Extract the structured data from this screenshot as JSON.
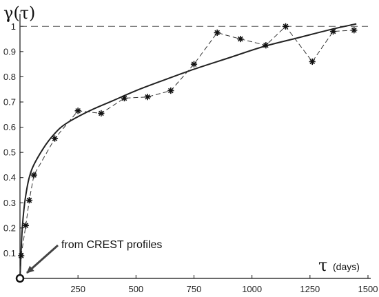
{
  "chart_data": {
    "type": "scatter",
    "title": "",
    "ylabel": "γ(τ)",
    "xlabel_symbol": "τ",
    "xlabel_unit": "(days)",
    "xlim": [
      0,
      1500
    ],
    "ylim": [
      0,
      1.05
    ],
    "xticks": [
      250,
      500,
      750,
      1000,
      1250,
      1500
    ],
    "yticks": [
      0.1,
      0.2,
      0.3,
      0.4,
      0.5,
      0.6,
      0.7,
      0.8,
      0.9,
      1
    ],
    "grid": false,
    "reference_line_y": 1,
    "series": [
      {
        "style": "dashed-with-star-markers",
        "x": [
          5,
          25,
          40,
          60,
          150,
          250,
          350,
          450,
          550,
          650,
          750,
          850,
          950,
          1060,
          1145,
          1260,
          1350,
          1440
        ],
        "y": [
          0.09,
          0.21,
          0.31,
          0.41,
          0.555,
          0.665,
          0.655,
          0.715,
          0.72,
          0.745,
          0.85,
          0.975,
          0.95,
          0.925,
          1.0,
          0.86,
          0.98,
          0.985
        ]
      },
      {
        "style": "solid-fit-curve",
        "x": [
          0,
          10,
          25,
          50,
          100,
          150,
          200,
          300,
          400,
          500,
          600,
          750,
          900,
          1050,
          1200,
          1350,
          1450
        ],
        "y": [
          0.0,
          0.2,
          0.33,
          0.43,
          0.515,
          0.575,
          0.615,
          0.665,
          0.705,
          0.745,
          0.78,
          0.83,
          0.875,
          0.92,
          0.955,
          0.99,
          1.01
        ]
      }
    ],
    "origin_marker": {
      "x": 0,
      "y": 0,
      "shape": "open-circle"
    },
    "annotation": {
      "text": "from CREST profiles",
      "points_to": {
        "x": 0,
        "y": 0
      }
    }
  }
}
